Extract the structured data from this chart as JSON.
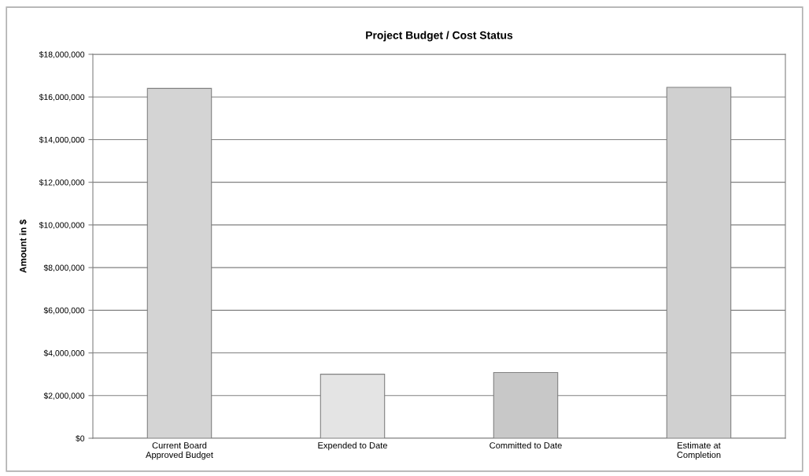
{
  "chart_data": {
    "type": "bar",
    "title": "Project Budget / Cost Status",
    "ylabel": "Amount in $",
    "categories": [
      "Current Board\nApproved Budget",
      "Expended to Date",
      "Committed to Date",
      "Estimate at\nCompletion"
    ],
    "values": [
      16400000,
      3000000,
      3080000,
      16450000
    ],
    "colors": [
      "#d4d4d4",
      "#e4e4e4",
      "#c8c8c8",
      "#d0d0d0"
    ],
    "ylim": [
      0,
      18000000
    ],
    "yticks": [
      {
        "value": 0,
        "label": "$0"
      },
      {
        "value": 2000000,
        "label": "$2,000,000"
      },
      {
        "value": 4000000,
        "label": "$4,000,000"
      },
      {
        "value": 6000000,
        "label": "$6,000,000"
      },
      {
        "value": 8000000,
        "label": "$8,000,000"
      },
      {
        "value": 10000000,
        "label": "$10,000,000"
      },
      {
        "value": 12000000,
        "label": "$12,000,000"
      },
      {
        "value": 14000000,
        "label": "$14,000,000"
      },
      {
        "value": 16000000,
        "label": "$16,000,000"
      },
      {
        "value": 18000000,
        "label": "$18,000,000"
      }
    ],
    "grid": "y",
    "legend": false
  }
}
